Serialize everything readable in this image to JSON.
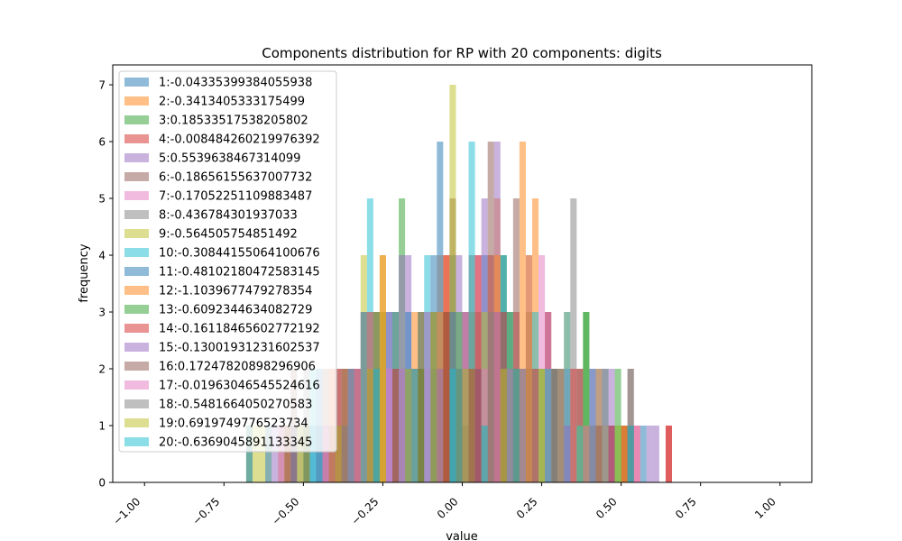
{
  "chart_data": {
    "type": "histogram",
    "title": "Components distribution for RP with 20 components: digits",
    "xlabel": "value",
    "ylabel": "frequency",
    "xlim": [
      -1.1,
      1.1
    ],
    "ylim": [
      0,
      7.35
    ],
    "xticks": [
      "−1.00",
      "−0.75",
      "−0.50",
      "−0.25",
      "0.00",
      "0.25",
      "0.50",
      "0.75",
      "1.00"
    ],
    "xtick_values": [
      -1.0,
      -0.75,
      -0.5,
      -0.25,
      0.0,
      0.25,
      0.5,
      0.75,
      1.0
    ],
    "yticks": [
      "0",
      "1",
      "2",
      "3",
      "4",
      "5",
      "6",
      "7"
    ],
    "ytick_values": [
      0,
      1,
      2,
      3,
      4,
      5,
      6,
      7
    ],
    "grid": false,
    "legend_position": "upper-left",
    "bar_opacity": 0.5,
    "bin_range": [
      -1.0,
      1.0
    ],
    "bin_count": 100,
    "series": [
      {
        "name": "1:-0.04335399384055938",
        "color": "#1f77b4",
        "bars": [
          [
            -0.68,
            1
          ],
          [
            -0.48,
            1
          ],
          [
            -0.4,
            1
          ],
          [
            -0.24,
            3
          ],
          [
            -0.12,
            3
          ],
          [
            -0.08,
            6
          ],
          [
            -0.04,
            4
          ],
          [
            0.0,
            1
          ],
          [
            0.06,
            4
          ],
          [
            0.14,
            2
          ],
          [
            0.3,
            2
          ],
          [
            0.46,
            1
          ]
        ]
      },
      {
        "name": "2:-0.3413405333175499",
        "color": "#ff7f0e",
        "bars": [
          [
            -0.5,
            1
          ],
          [
            -0.34,
            2
          ],
          [
            -0.22,
            3
          ],
          [
            -0.1,
            3
          ],
          [
            -0.06,
            4
          ],
          [
            0.02,
            3
          ],
          [
            0.1,
            5
          ],
          [
            0.18,
            6
          ],
          [
            0.22,
            5
          ],
          [
            0.32,
            3
          ],
          [
            0.42,
            2
          ],
          [
            0.54,
            1
          ]
        ]
      },
      {
        "name": "3:0.18533517538205802",
        "color": "#2ca02c",
        "bars": [
          [
            -0.56,
            1
          ],
          [
            -0.38,
            2
          ],
          [
            -0.26,
            3
          ],
          [
            -0.2,
            5
          ],
          [
            -0.14,
            3
          ],
          [
            0.0,
            1
          ],
          [
            0.04,
            3
          ],
          [
            0.12,
            4
          ],
          [
            0.2,
            2
          ],
          [
            0.38,
            3
          ],
          [
            0.44,
            2
          ],
          [
            0.5,
            1
          ]
        ]
      },
      {
        "name": "4:-0.008484260219976392",
        "color": "#d62728",
        "bars": [
          [
            -0.46,
            1
          ],
          [
            -0.38,
            2
          ],
          [
            -0.28,
            3
          ],
          [
            -0.16,
            2
          ],
          [
            -0.06,
            4
          ],
          [
            0.0,
            3
          ],
          [
            0.08,
            4
          ],
          [
            0.16,
            3
          ],
          [
            0.26,
            3
          ],
          [
            0.36,
            2
          ],
          [
            0.5,
            1
          ],
          [
            0.64,
            1
          ]
        ]
      },
      {
        "name": "5:0.5539638467314099",
        "color": "#9467bd",
        "bars": [
          [
            -0.44,
            1
          ],
          [
            -0.36,
            2
          ],
          [
            -0.24,
            3
          ],
          [
            -0.18,
            4
          ],
          [
            -0.1,
            2
          ],
          [
            -0.02,
            4
          ],
          [
            0.06,
            5
          ],
          [
            0.1,
            6
          ],
          [
            0.2,
            4
          ],
          [
            0.32,
            2
          ],
          [
            0.46,
            2
          ],
          [
            0.58,
            1
          ]
        ]
      },
      {
        "name": "6:-0.18656155637007732",
        "color": "#8c564b",
        "bars": [
          [
            -0.58,
            1
          ],
          [
            -0.44,
            2
          ],
          [
            -0.34,
            2
          ],
          [
            -0.22,
            3
          ],
          [
            -0.1,
            3
          ],
          [
            -0.04,
            5
          ],
          [
            0.02,
            4
          ],
          [
            0.08,
            6
          ],
          [
            0.16,
            5
          ],
          [
            0.26,
            3
          ],
          [
            0.36,
            2
          ],
          [
            0.52,
            2
          ]
        ]
      },
      {
        "name": "7:-0.17052251109883487",
        "color": "#e377c2",
        "bars": [
          [
            -0.54,
            1
          ],
          [
            -0.42,
            2
          ],
          [
            -0.32,
            3
          ],
          [
            -0.2,
            2
          ],
          [
            -0.12,
            2
          ],
          [
            -0.04,
            3
          ],
          [
            0.04,
            4
          ],
          [
            0.1,
            3
          ],
          [
            0.24,
            4
          ],
          [
            0.4,
            2
          ],
          [
            0.54,
            1
          ]
        ]
      },
      {
        "name": "8:-0.436784301937033",
        "color": "#7f7f7f",
        "bars": [
          [
            -0.52,
            1
          ],
          [
            -0.4,
            2
          ],
          [
            -0.3,
            2
          ],
          [
            -0.18,
            2
          ],
          [
            -0.08,
            4
          ],
          [
            0.0,
            2
          ],
          [
            0.12,
            4
          ],
          [
            0.2,
            3
          ],
          [
            0.34,
            5
          ],
          [
            0.42,
            2
          ],
          [
            0.52,
            2
          ]
        ]
      },
      {
        "name": "9:-0.564505754851492",
        "color": "#bcbd22",
        "bars": [
          [
            -0.66,
            1
          ],
          [
            -0.5,
            1
          ],
          [
            -0.32,
            4
          ],
          [
            -0.26,
            4
          ],
          [
            -0.14,
            2
          ],
          [
            -0.06,
            3
          ],
          [
            -0.04,
            7
          ],
          [
            0.06,
            3
          ],
          [
            0.16,
            2
          ],
          [
            0.28,
            2
          ],
          [
            0.44,
            1
          ]
        ]
      },
      {
        "name": "10:-0.30844155064100676",
        "color": "#17becf",
        "bars": [
          [
            -0.62,
            1
          ],
          [
            -0.48,
            2
          ],
          [
            -0.3,
            5
          ],
          [
            -0.22,
            3
          ],
          [
            -0.12,
            4
          ],
          [
            -0.02,
            2
          ],
          [
            0.02,
            6
          ],
          [
            0.12,
            4
          ],
          [
            0.22,
            3
          ],
          [
            0.32,
            3
          ],
          [
            0.48,
            1
          ]
        ]
      },
      {
        "name": "11:-0.48102180472583145",
        "color": "#1f77b4",
        "bars": [
          [
            -0.54,
            1
          ],
          [
            -0.46,
            2
          ],
          [
            -0.32,
            3
          ],
          [
            -0.18,
            3
          ],
          [
            -0.1,
            4
          ],
          [
            -0.04,
            3
          ],
          [
            0.04,
            2
          ],
          [
            0.14,
            3
          ],
          [
            0.28,
            2
          ],
          [
            0.4,
            2
          ],
          [
            0.56,
            1
          ]
        ]
      },
      {
        "name": "12:-1.1039677479278354",
        "color": "#ff7f0e",
        "bars": [
          [
            -0.68,
            1
          ],
          [
            -0.42,
            2
          ],
          [
            -0.26,
            4
          ],
          [
            -0.16,
            3
          ],
          [
            -0.08,
            3
          ],
          [
            0.02,
            2
          ],
          [
            0.1,
            4
          ],
          [
            0.2,
            4
          ],
          [
            0.3,
            2
          ],
          [
            0.38,
            1
          ],
          [
            0.5,
            1
          ]
        ]
      },
      {
        "name": "13:-0.6092344634082729",
        "color": "#2ca02c",
        "bars": [
          [
            -0.5,
            1
          ],
          [
            -0.36,
            2
          ],
          [
            -0.28,
            3
          ],
          [
            -0.14,
            2
          ],
          [
            -0.02,
            3
          ],
          [
            0.06,
            1
          ],
          [
            0.14,
            3
          ],
          [
            0.24,
            2
          ],
          [
            0.38,
            3
          ],
          [
            0.48,
            2
          ]
        ]
      },
      {
        "name": "14:-0.16118465602772192",
        "color": "#d62728",
        "bars": [
          [
            -0.56,
            1
          ],
          [
            -0.4,
            2
          ],
          [
            -0.3,
            3
          ],
          [
            -0.22,
            2
          ],
          [
            -0.06,
            3
          ],
          [
            0.04,
            4
          ],
          [
            0.12,
            3
          ],
          [
            0.22,
            2
          ],
          [
            0.34,
            2
          ],
          [
            0.46,
            1
          ],
          [
            0.64,
            1
          ]
        ]
      },
      {
        "name": "15:-0.13001931231602537",
        "color": "#9467bd",
        "bars": [
          [
            -0.6,
            1
          ],
          [
            -0.46,
            1
          ],
          [
            -0.36,
            2
          ],
          [
            -0.2,
            4
          ],
          [
            -0.08,
            2
          ],
          [
            0.0,
            3
          ],
          [
            0.1,
            3
          ],
          [
            0.18,
            2
          ],
          [
            0.32,
            1
          ],
          [
            0.44,
            2
          ],
          [
            0.6,
            1
          ]
        ]
      },
      {
        "name": "16:0.17247820898296906",
        "color": "#8c564b",
        "bars": [
          [
            -0.54,
            2
          ],
          [
            -0.42,
            1
          ],
          [
            -0.34,
            2
          ],
          [
            -0.14,
            3
          ],
          [
            -0.06,
            3
          ],
          [
            0.02,
            2
          ],
          [
            0.16,
            2
          ],
          [
            0.28,
            2
          ],
          [
            0.42,
            1
          ],
          [
            0.52,
            1
          ]
        ]
      },
      {
        "name": "17:-0.01963046545524616",
        "color": "#e377c2",
        "bars": [
          [
            -0.58,
            1
          ],
          [
            -0.44,
            1
          ],
          [
            -0.34,
            2
          ],
          [
            -0.24,
            2
          ],
          [
            -0.12,
            3
          ],
          [
            0.06,
            2
          ],
          [
            0.14,
            2
          ],
          [
            0.26,
            3
          ],
          [
            0.38,
            1
          ],
          [
            0.54,
            1
          ]
        ]
      },
      {
        "name": "18:-0.5481664050270583",
        "color": "#7f7f7f",
        "bars": [
          [
            -0.62,
            1
          ],
          [
            -0.5,
            2
          ],
          [
            -0.38,
            1
          ],
          [
            -0.28,
            2
          ],
          [
            -0.16,
            2
          ],
          [
            -0.02,
            2
          ],
          [
            0.08,
            3
          ],
          [
            0.18,
            2
          ],
          [
            0.3,
            2
          ],
          [
            0.4,
            1
          ],
          [
            0.52,
            1
          ]
        ]
      },
      {
        "name": "19:0.6919749776523734",
        "color": "#bcbd22",
        "bars": [
          [
            -0.64,
            1
          ],
          [
            -0.52,
            1
          ],
          [
            -0.4,
            1
          ],
          [
            -0.3,
            2
          ],
          [
            -0.18,
            2
          ],
          [
            -0.1,
            3
          ],
          [
            0.0,
            2
          ],
          [
            0.12,
            2
          ],
          [
            0.24,
            2
          ],
          [
            0.36,
            1
          ],
          [
            0.48,
            1
          ]
        ]
      },
      {
        "name": "20:-0.6369045891133345",
        "color": "#17becf",
        "bars": [
          [
            -0.68,
            1
          ],
          [
            -0.46,
            1
          ],
          [
            -0.28,
            2
          ],
          [
            -0.16,
            2
          ],
          [
            -0.04,
            2
          ],
          [
            0.06,
            1
          ],
          [
            0.16,
            2
          ],
          [
            0.26,
            2
          ],
          [
            0.36,
            1
          ],
          [
            0.52,
            1
          ]
        ]
      }
    ]
  }
}
